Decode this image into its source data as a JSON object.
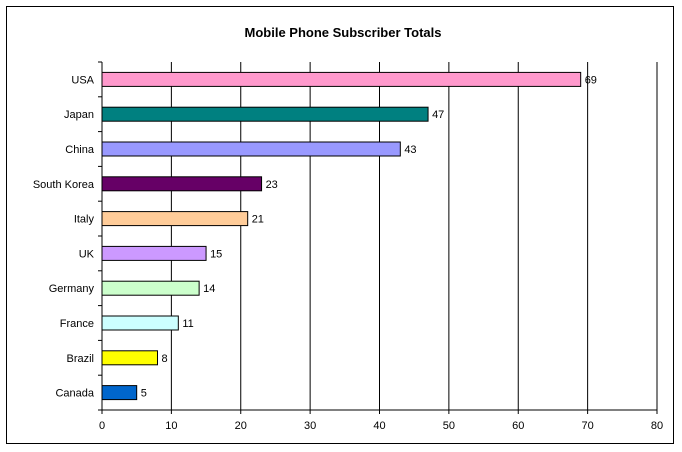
{
  "chart_data": {
    "type": "bar",
    "orientation": "horizontal",
    "title": "Mobile Phone Subscriber Totals",
    "xlabel": "",
    "ylabel": "",
    "categories": [
      "USA",
      "Japan",
      "China",
      "South Korea",
      "Italy",
      "UK",
      "Germany",
      "France",
      "Brazil",
      "Canada"
    ],
    "values": [
      69,
      47,
      43,
      23,
      21,
      15,
      14,
      11,
      8,
      5
    ],
    "colors": [
      "#FF99CC",
      "#008080",
      "#9999FF",
      "#660066",
      "#FFCC99",
      "#CC99FF",
      "#CCFFCC",
      "#CCFFFF",
      "#FFFF00",
      "#0066CC"
    ],
    "xlim": [
      0,
      80
    ],
    "xticks": [
      "0",
      "10",
      "20",
      "30",
      "40",
      "50",
      "60",
      "70",
      "80"
    ],
    "grid": "vertical",
    "legend": "none"
  }
}
